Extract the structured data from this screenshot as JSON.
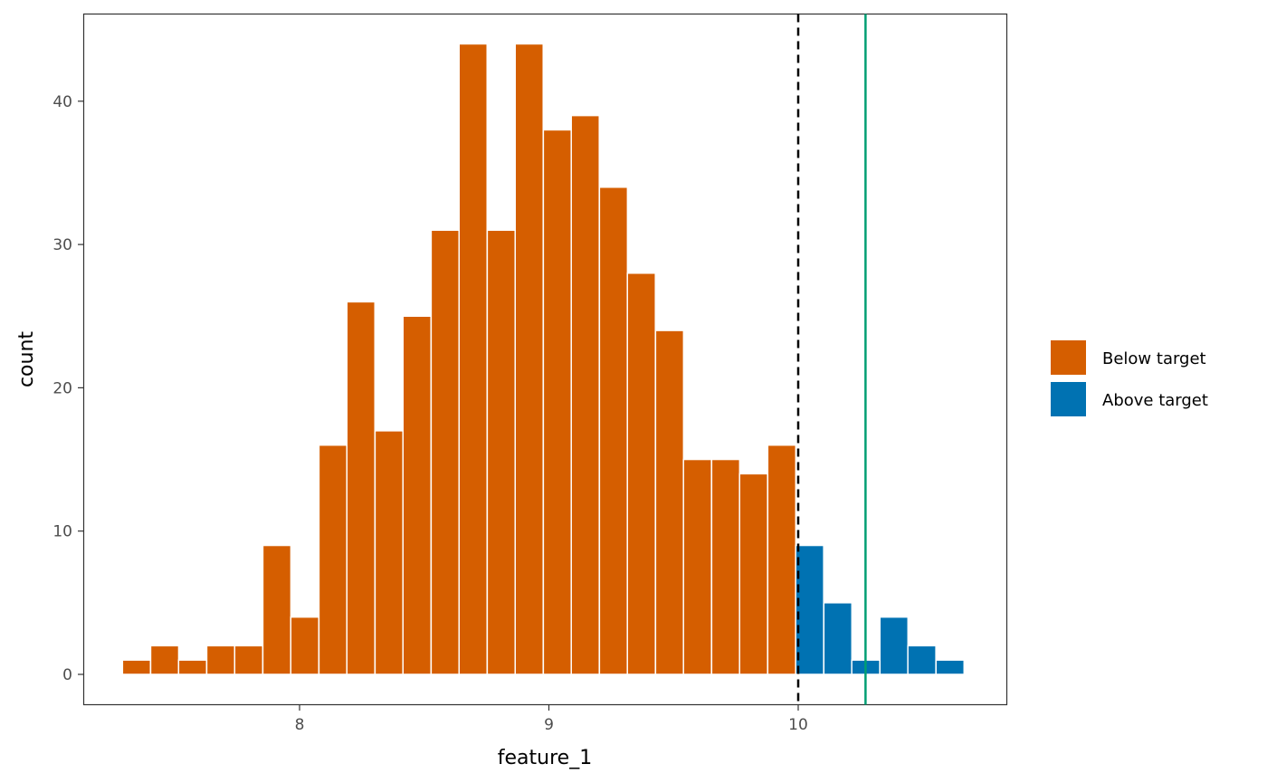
{
  "chart_data": {
    "type": "bar",
    "subtype": "histogram",
    "title": "",
    "xlabel": "feature_1",
    "ylabel": "count",
    "xlim": [
      7.2,
      10.9
    ],
    "ylim": [
      -2.2,
      46.2
    ],
    "x_ticks": [
      8,
      9,
      10
    ],
    "x_tick_labels": [
      "8",
      "9",
      "10"
    ],
    "y_ticks": [
      0,
      10,
      20,
      30,
      40
    ],
    "y_tick_labels": [
      "0",
      "10",
      "20",
      "30",
      "40"
    ],
    "grid": false,
    "bin_width": 0.1125,
    "bin_start": 7.29,
    "bins": [
      {
        "x": 7.346,
        "count": 1,
        "group": "Below target"
      },
      {
        "x": 7.459,
        "count": 2,
        "group": "Below target"
      },
      {
        "x": 7.571,
        "count": 1,
        "group": "Below target"
      },
      {
        "x": 7.684,
        "count": 2,
        "group": "Below target"
      },
      {
        "x": 7.796,
        "count": 2,
        "group": "Below target"
      },
      {
        "x": 7.909,
        "count": 9,
        "group": "Below target"
      },
      {
        "x": 8.021,
        "count": 4,
        "group": "Below target"
      },
      {
        "x": 8.134,
        "count": 16,
        "group": "Below target"
      },
      {
        "x": 8.246,
        "count": 26,
        "group": "Below target"
      },
      {
        "x": 8.359,
        "count": 17,
        "group": "Below target"
      },
      {
        "x": 8.471,
        "count": 25,
        "group": "Below target"
      },
      {
        "x": 8.584,
        "count": 31,
        "group": "Below target"
      },
      {
        "x": 8.696,
        "count": 44,
        "group": "Below target"
      },
      {
        "x": 8.809,
        "count": 31,
        "group": "Below target"
      },
      {
        "x": 8.921,
        "count": 44,
        "group": "Below target"
      },
      {
        "x": 9.034,
        "count": 38,
        "group": "Below target"
      },
      {
        "x": 9.146,
        "count": 39,
        "group": "Below target"
      },
      {
        "x": 9.259,
        "count": 34,
        "group": "Below target"
      },
      {
        "x": 9.371,
        "count": 28,
        "group": "Below target"
      },
      {
        "x": 9.484,
        "count": 24,
        "group": "Below target"
      },
      {
        "x": 9.596,
        "count": 15,
        "group": "Below target"
      },
      {
        "x": 9.709,
        "count": 15,
        "group": "Below target"
      },
      {
        "x": 9.821,
        "count": 14,
        "group": "Below target"
      },
      {
        "x": 9.934,
        "count": 16,
        "group": "Below target"
      },
      {
        "x": 10.046,
        "count": 9,
        "group": "Above target"
      },
      {
        "x": 10.159,
        "count": 5,
        "group": "Above target"
      },
      {
        "x": 10.271,
        "count": 1,
        "group": "Above target"
      },
      {
        "x": 10.384,
        "count": 4,
        "group": "Above target"
      },
      {
        "x": 10.496,
        "count": 2,
        "group": "Above target"
      },
      {
        "x": 10.609,
        "count": 1,
        "group": "Above target"
      }
    ],
    "series": [
      {
        "name": "Below target",
        "color": "#D55E00"
      },
      {
        "name": "Above target",
        "color": "#0072B2"
      }
    ],
    "reference_lines": [
      {
        "type": "vline",
        "x": 10.0,
        "style": "dashed",
        "color": "#000000"
      },
      {
        "type": "vline",
        "x": 10.27,
        "style": "solid",
        "color": "#009E73"
      }
    ],
    "legend": {
      "position": "right",
      "entries": [
        "Below target",
        "Above target"
      ]
    }
  }
}
